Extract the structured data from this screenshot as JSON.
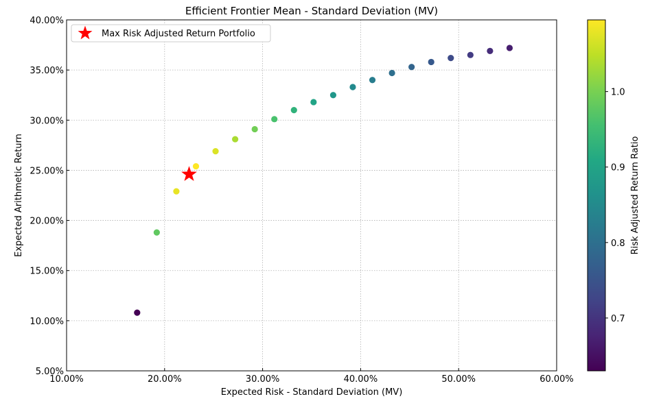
{
  "chart_data": {
    "type": "scatter",
    "title": "Efficient Frontier Mean - Standard Deviation (MV)",
    "xlabel": "Expected Risk - Standard Deviation (MV)",
    "ylabel": "Expected Arithmetic Return",
    "xlim": [
      0.1,
      0.6
    ],
    "ylim": [
      0.05,
      0.4
    ],
    "x_ticks": [
      0.1,
      0.2,
      0.3,
      0.4,
      0.5,
      0.6
    ],
    "x_tick_labels": [
      "10.00%",
      "20.00%",
      "30.00%",
      "40.00%",
      "50.00%",
      "60.00%"
    ],
    "y_ticks": [
      0.05,
      0.1,
      0.15,
      0.2,
      0.25,
      0.3,
      0.35,
      0.4
    ],
    "y_tick_labels": [
      "5.00%",
      "10.00%",
      "15.00%",
      "20.00%",
      "25.00%",
      "30.00%",
      "35.00%",
      "40.00%"
    ],
    "grid": true,
    "legend_position": "top-left",
    "legend_label": "Max Risk Adjusted Return Portfolio",
    "colorbar": {
      "label": "Risk Adjusted Return Ratio",
      "range": [
        0.63,
        1.095
      ],
      "ticks": [
        0.7,
        0.8,
        0.9,
        1.0
      ],
      "tick_labels": [
        "0.7",
        "0.8",
        "0.9",
        "1.0"
      ]
    },
    "series": [
      {
        "name": "Efficient Frontier",
        "points": [
          {
            "x": 0.172,
            "y": 0.108,
            "c": 0.628
          },
          {
            "x": 0.192,
            "y": 0.188,
            "c": 0.98
          },
          {
            "x": 0.212,
            "y": 0.229,
            "c": 1.08
          },
          {
            "x": 0.232,
            "y": 0.254,
            "c": 1.095
          },
          {
            "x": 0.252,
            "y": 0.269,
            "c": 1.07
          },
          {
            "x": 0.272,
            "y": 0.281,
            "c": 1.035
          },
          {
            "x": 0.292,
            "y": 0.291,
            "c": 0.995
          },
          {
            "x": 0.312,
            "y": 0.301,
            "c": 0.96
          },
          {
            "x": 0.332,
            "y": 0.31,
            "c": 0.93
          },
          {
            "x": 0.352,
            "y": 0.318,
            "c": 0.9
          },
          {
            "x": 0.372,
            "y": 0.325,
            "c": 0.875
          },
          {
            "x": 0.392,
            "y": 0.333,
            "c": 0.85
          },
          {
            "x": 0.412,
            "y": 0.34,
            "c": 0.825
          },
          {
            "x": 0.432,
            "y": 0.347,
            "c": 0.8
          },
          {
            "x": 0.452,
            "y": 0.353,
            "c": 0.78
          },
          {
            "x": 0.472,
            "y": 0.358,
            "c": 0.76
          },
          {
            "x": 0.492,
            "y": 0.362,
            "c": 0.735
          },
          {
            "x": 0.512,
            "y": 0.365,
            "c": 0.712
          },
          {
            "x": 0.532,
            "y": 0.369,
            "c": 0.69
          },
          {
            "x": 0.552,
            "y": 0.372,
            "c": 0.668
          }
        ]
      }
    ],
    "highlight": {
      "name": "Max Risk Adjusted Return Portfolio",
      "x": 0.225,
      "y": 0.246,
      "color": "#ff0000",
      "marker": "star"
    }
  }
}
